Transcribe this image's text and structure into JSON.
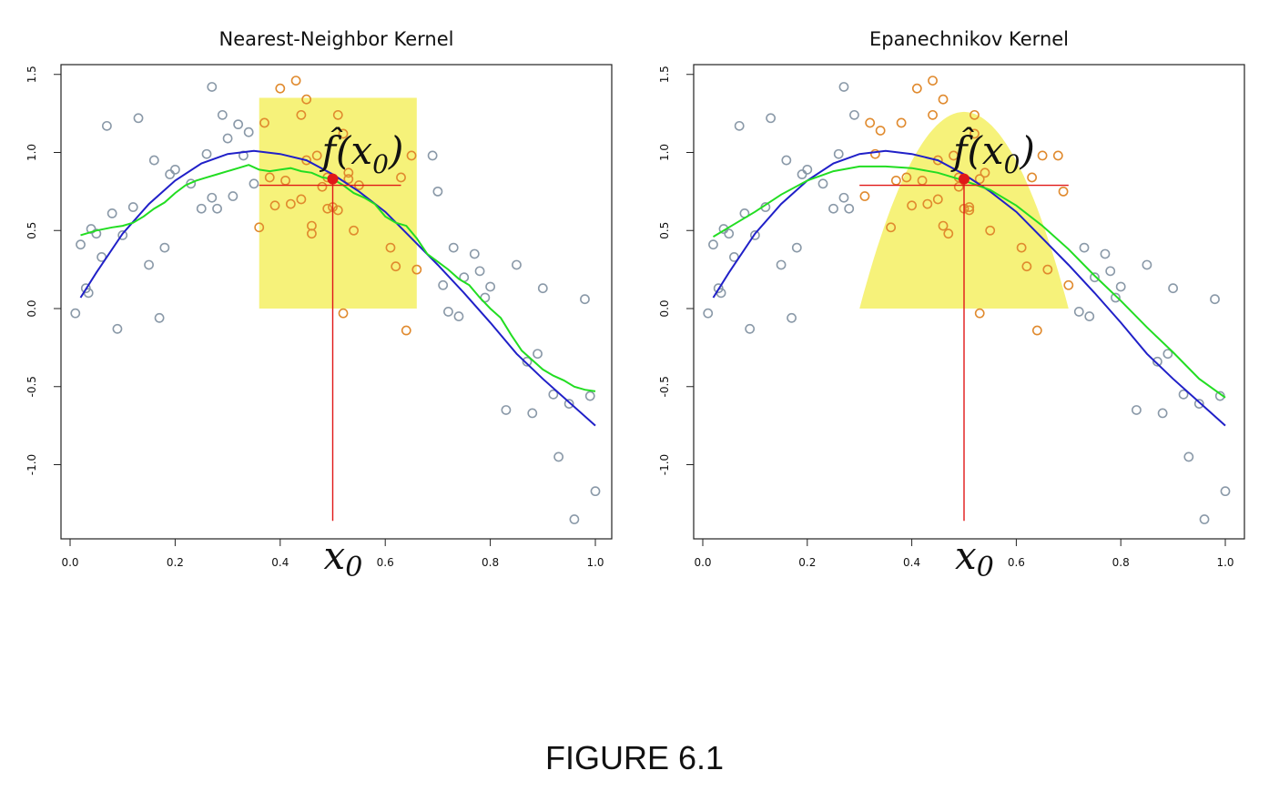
{
  "figure_caption": "FIGURE 6.1",
  "chart_data": [
    {
      "type": "scatter",
      "title": "Nearest-Neighbor Kernel",
      "xlim": [
        0,
        1
      ],
      "ylim": [
        -1.5,
        1.5
      ],
      "xticks": [
        "0.0",
        "0.2",
        "0.4",
        "0.6",
        "0.8",
        "1.0"
      ],
      "yticks": [
        "-1.0",
        "-0.5",
        "0.0",
        "0.5",
        "1.0",
        "1.5"
      ],
      "grid": false,
      "annotation_fhat": "f̂(x",
      "annotation_sub": "0",
      "annotation_close": ")",
      "annotation_x0": "x",
      "annotation_x0_sub": "0",
      "x0": 0.5,
      "fhat_x0": 0.83,
      "window": {
        "shape": "box",
        "x_from": 0.36,
        "x_to": 0.66,
        "height": 1.35
      },
      "series": [
        {
          "kind": "points",
          "color": "#8a99a8",
          "x": [
            0.01,
            0.02,
            0.03,
            0.035,
            0.04,
            0.05,
            0.06,
            0.07,
            0.08,
            0.09,
            0.1,
            0.12,
            0.13,
            0.15,
            0.16,
            0.17,
            0.18,
            0.19,
            0.2,
            0.23,
            0.25,
            0.26,
            0.27,
            0.27,
            0.28,
            0.29,
            0.3,
            0.31,
            0.32,
            0.33,
            0.34,
            0.35,
            0.69,
            0.7,
            0.71,
            0.72,
            0.73,
            0.74,
            0.75,
            0.77,
            0.78,
            0.79,
            0.8,
            0.83,
            0.85,
            0.87,
            0.88,
            0.89,
            0.9,
            0.92,
            0.93,
            0.95,
            0.96,
            0.98,
            0.99,
            1.0
          ],
          "y": [
            -0.03,
            0.41,
            0.13,
            0.1,
            0.51,
            0.48,
            0.33,
            1.17,
            0.61,
            -0.13,
            0.47,
            0.65,
            1.22,
            0.28,
            0.95,
            -0.06,
            0.39,
            0.86,
            0.89,
            0.8,
            0.64,
            0.99,
            0.71,
            1.42,
            0.64,
            1.24,
            1.09,
            0.72,
            1.18,
            0.98,
            1.13,
            0.8,
            0.98,
            0.75,
            0.15,
            -0.02,
            0.39,
            -0.05,
            0.2,
            0.35,
            0.24,
            0.07,
            0.14,
            -0.65,
            0.28,
            -0.34,
            -0.67,
            -0.29,
            0.13,
            -0.55,
            -0.95,
            -0.61,
            -1.35,
            0.06,
            -0.56,
            -1.17
          ]
        },
        {
          "kind": "points",
          "color": "#e08a2e",
          "x": [
            0.36,
            0.37,
            0.38,
            0.39,
            0.4,
            0.41,
            0.42,
            0.43,
            0.44,
            0.44,
            0.45,
            0.45,
            0.46,
            0.46,
            0.47,
            0.48,
            0.49,
            0.49,
            0.5,
            0.51,
            0.51,
            0.52,
            0.52,
            0.53,
            0.53,
            0.54,
            0.55,
            0.61,
            0.62,
            0.63,
            0.64,
            0.65,
            0.66
          ],
          "y": [
            0.52,
            1.19,
            0.84,
            0.66,
            1.41,
            0.82,
            0.67,
            1.46,
            1.24,
            0.7,
            0.95,
            1.34,
            0.53,
            0.48,
            0.98,
            0.78,
            0.84,
            0.64,
            0.65,
            0.63,
            1.24,
            1.12,
            -0.03,
            0.83,
            0.87,
            0.5,
            0.79,
            0.39,
            0.27,
            0.84,
            -0.14,
            0.98,
            0.25
          ]
        },
        {
          "kind": "line",
          "color": "#2020c8",
          "x": [
            0.02,
            0.05,
            0.1,
            0.15,
            0.2,
            0.25,
            0.3,
            0.35,
            0.4,
            0.45,
            0.5,
            0.55,
            0.6,
            0.65,
            0.7,
            0.75,
            0.8,
            0.85,
            0.9,
            0.95,
            1.0
          ],
          "y": [
            0.07,
            0.23,
            0.48,
            0.67,
            0.82,
            0.93,
            0.99,
            1.01,
            0.99,
            0.95,
            0.86,
            0.75,
            0.62,
            0.45,
            0.28,
            0.1,
            -0.09,
            -0.29,
            -0.45,
            -0.6,
            -0.75
          ]
        },
        {
          "kind": "line",
          "color": "#22dd22",
          "x": [
            0.02,
            0.05,
            0.08,
            0.1,
            0.12,
            0.14,
            0.16,
            0.18,
            0.2,
            0.22,
            0.24,
            0.26,
            0.28,
            0.3,
            0.32,
            0.34,
            0.36,
            0.38,
            0.4,
            0.42,
            0.44,
            0.46,
            0.48,
            0.5,
            0.52,
            0.54,
            0.56,
            0.58,
            0.6,
            0.62,
            0.64,
            0.66,
            0.68,
            0.7,
            0.72,
            0.74,
            0.76,
            0.78,
            0.8,
            0.82,
            0.84,
            0.86,
            0.88,
            0.9,
            0.92,
            0.94,
            0.96,
            0.98,
            1.0
          ],
          "y": [
            0.47,
            0.5,
            0.52,
            0.53,
            0.55,
            0.59,
            0.64,
            0.68,
            0.74,
            0.79,
            0.82,
            0.84,
            0.86,
            0.88,
            0.9,
            0.92,
            0.89,
            0.88,
            0.89,
            0.9,
            0.88,
            0.87,
            0.84,
            0.83,
            0.79,
            0.74,
            0.71,
            0.67,
            0.59,
            0.55,
            0.53,
            0.45,
            0.35,
            0.3,
            0.25,
            0.19,
            0.15,
            0.07,
            0.0,
            -0.06,
            -0.17,
            -0.27,
            -0.33,
            -0.39,
            -0.43,
            -0.46,
            -0.5,
            -0.52,
            -0.53
          ]
        }
      ]
    },
    {
      "type": "scatter",
      "title": "Epanechnikov Kernel",
      "xlim": [
        0,
        1
      ],
      "ylim": [
        -1.5,
        1.5
      ],
      "xticks": [
        "0.0",
        "0.2",
        "0.4",
        "0.6",
        "0.8",
        "1.0"
      ],
      "yticks": [
        "-1.0",
        "-0.5",
        "0.0",
        "0.5",
        "1.0",
        "1.5"
      ],
      "grid": false,
      "annotation_fhat": "f̂(x",
      "annotation_sub": "0",
      "annotation_close": ")",
      "annotation_x0": "x",
      "annotation_x0_sub": "0",
      "x0": 0.5,
      "fhat_x0": 0.83,
      "window": {
        "shape": "epanechnikov",
        "x_from": 0.3,
        "x_to": 0.7,
        "height": 1.26
      },
      "series": [
        {
          "kind": "points",
          "color": "#8a99a8",
          "x": [
            0.01,
            0.02,
            0.03,
            0.035,
            0.04,
            0.05,
            0.06,
            0.07,
            0.08,
            0.09,
            0.1,
            0.12,
            0.13,
            0.15,
            0.16,
            0.17,
            0.18,
            0.19,
            0.2,
            0.23,
            0.25,
            0.26,
            0.27,
            0.27,
            0.28,
            0.29,
            0.72,
            0.73,
            0.74,
            0.75,
            0.77,
            0.78,
            0.79,
            0.8,
            0.83,
            0.85,
            0.87,
            0.88,
            0.89,
            0.9,
            0.92,
            0.93,
            0.95,
            0.96,
            0.98,
            0.99,
            1.0
          ],
          "y": [
            -0.03,
            0.41,
            0.13,
            0.1,
            0.51,
            0.48,
            0.33,
            1.17,
            0.61,
            -0.13,
            0.47,
            0.65,
            1.22,
            0.28,
            0.95,
            -0.06,
            0.39,
            0.86,
            0.89,
            0.8,
            0.64,
            0.99,
            0.71,
            1.42,
            0.64,
            1.24,
            -0.02,
            0.39,
            -0.05,
            0.2,
            0.35,
            0.24,
            0.07,
            0.14,
            -0.65,
            0.28,
            -0.34,
            -0.67,
            -0.29,
            0.13,
            -0.55,
            -0.95,
            -0.61,
            -1.35,
            0.06,
            -0.56,
            -1.17
          ]
        },
        {
          "kind": "points",
          "color": "#e08a2e",
          "x": [
            0.31,
            0.32,
            0.33,
            0.34,
            0.36,
            0.37,
            0.38,
            0.39,
            0.4,
            0.41,
            0.42,
            0.43,
            0.44,
            0.44,
            0.45,
            0.45,
            0.46,
            0.46,
            0.47,
            0.48,
            0.49,
            0.49,
            0.5,
            0.51,
            0.51,
            0.52,
            0.52,
            0.53,
            0.53,
            0.54,
            0.55,
            0.61,
            0.62,
            0.63,
            0.64,
            0.65,
            0.66,
            0.68,
            0.69,
            0.7
          ],
          "y": [
            0.72,
            1.19,
            0.99,
            1.14,
            0.52,
            0.82,
            1.19,
            0.84,
            0.66,
            1.41,
            0.82,
            0.67,
            1.46,
            1.24,
            0.7,
            0.95,
            1.34,
            0.53,
            0.48,
            0.98,
            0.78,
            0.84,
            0.64,
            0.65,
            0.63,
            1.24,
            1.12,
            -0.03,
            0.83,
            0.87,
            0.5,
            0.39,
            0.27,
            0.84,
            -0.14,
            0.98,
            0.25,
            0.98,
            0.75,
            0.15
          ]
        },
        {
          "kind": "line",
          "color": "#2020c8",
          "x": [
            0.02,
            0.05,
            0.1,
            0.15,
            0.2,
            0.25,
            0.3,
            0.35,
            0.4,
            0.45,
            0.5,
            0.55,
            0.6,
            0.65,
            0.7,
            0.75,
            0.8,
            0.85,
            0.9,
            0.95,
            1.0
          ],
          "y": [
            0.07,
            0.23,
            0.48,
            0.67,
            0.82,
            0.93,
            0.99,
            1.01,
            0.99,
            0.95,
            0.86,
            0.75,
            0.62,
            0.45,
            0.28,
            0.1,
            -0.09,
            -0.29,
            -0.45,
            -0.6,
            -0.75
          ]
        },
        {
          "kind": "line",
          "color": "#22dd22",
          "x": [
            0.02,
            0.05,
            0.1,
            0.15,
            0.2,
            0.25,
            0.3,
            0.35,
            0.4,
            0.45,
            0.5,
            0.55,
            0.6,
            0.65,
            0.7,
            0.75,
            0.8,
            0.85,
            0.9,
            0.95,
            1.0
          ],
          "y": [
            0.46,
            0.52,
            0.62,
            0.73,
            0.82,
            0.88,
            0.91,
            0.91,
            0.9,
            0.87,
            0.82,
            0.76,
            0.66,
            0.53,
            0.38,
            0.21,
            0.05,
            -0.12,
            -0.28,
            -0.45,
            -0.57
          ]
        }
      ]
    }
  ]
}
